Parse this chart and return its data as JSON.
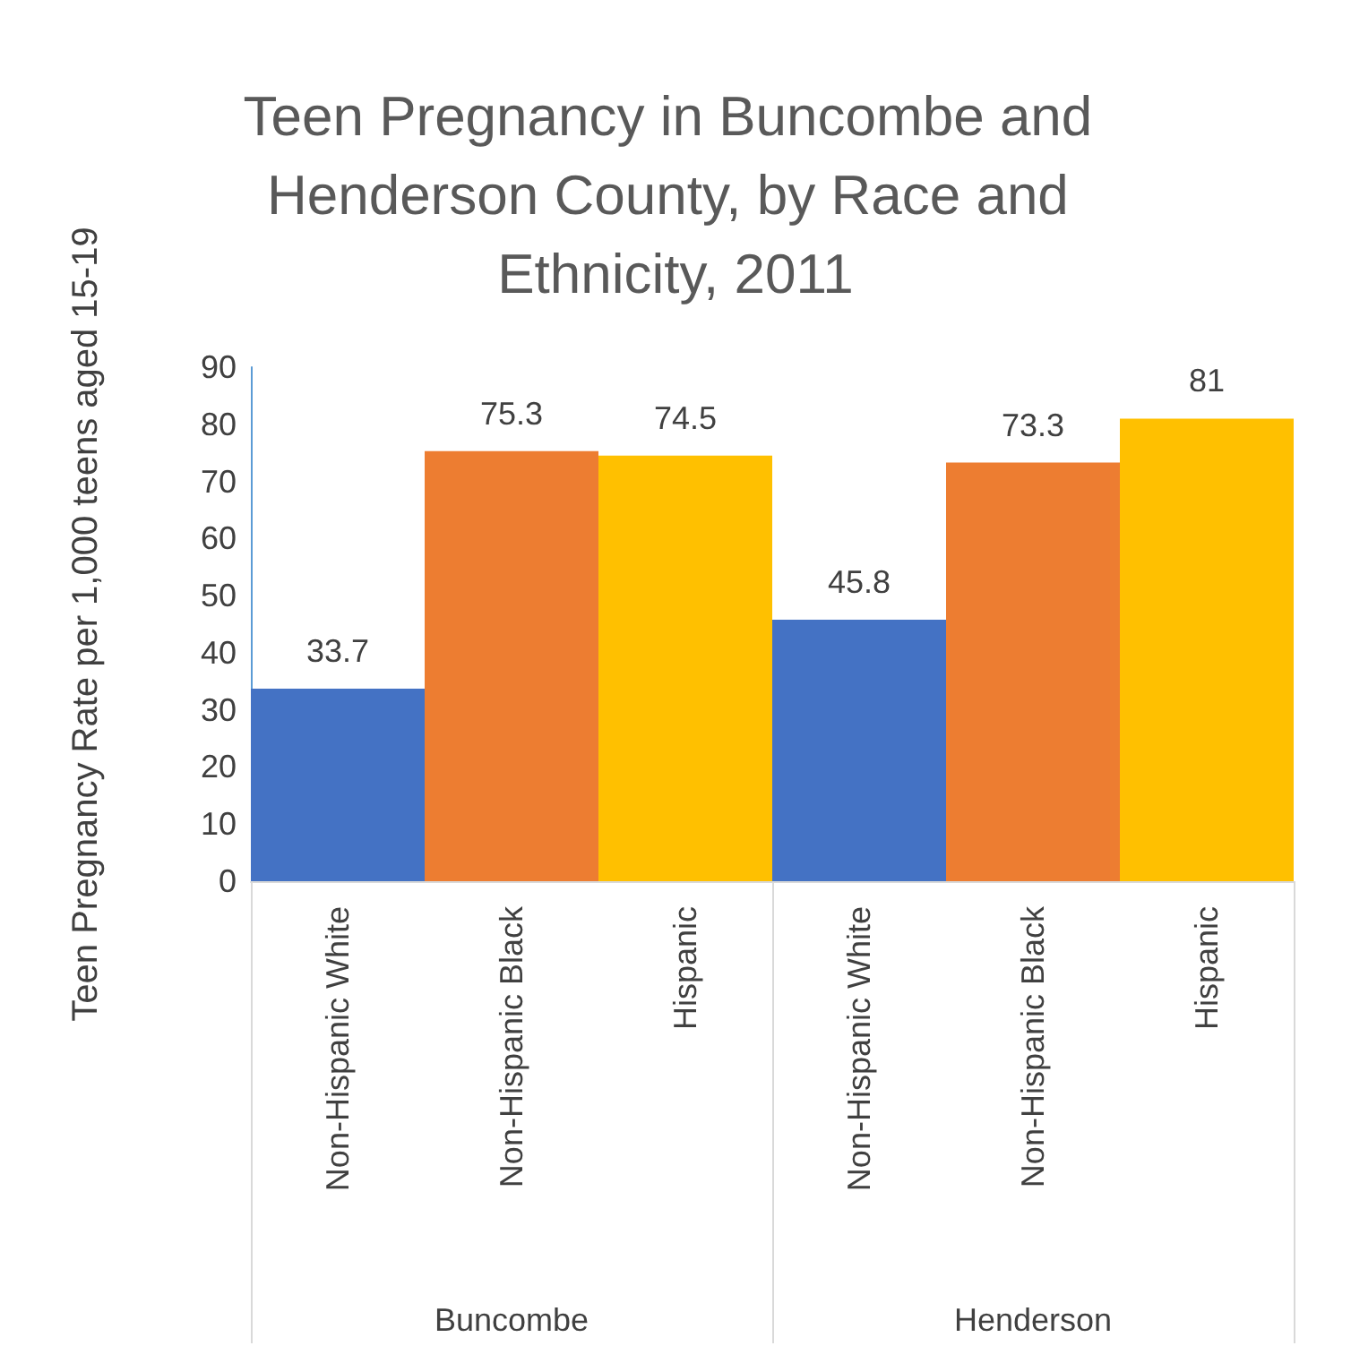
{
  "chart_data": {
    "type": "bar",
    "title": "Teen Pregnancy in Buncombe and Henderson County, by Race and Ethnicity, 2011",
    "ylabel": "Teen Pregnancy Rate per 1,000 teens aged 15-19",
    "categories": [
      "Non-Hispanic White",
      "Non-Hispanic Black",
      "Hispanic",
      "Non-Hispanic White",
      "Non-Hispanic Black",
      "Hispanic"
    ],
    "values": [
      33.7,
      75.3,
      74.5,
      45.8,
      73.3,
      81
    ],
    "colors": [
      "#4472c4",
      "#ed7d31",
      "#ffc000",
      "#4472c4",
      "#ed7d31",
      "#ffc000"
    ],
    "annotations": [
      "Buncombe",
      "Henderson"
    ],
    "ylim": [
      0,
      90
    ],
    "yticks": [
      0,
      10,
      20,
      30,
      40,
      50,
      60,
      70,
      80,
      90
    ],
    "data_labels": true
  }
}
